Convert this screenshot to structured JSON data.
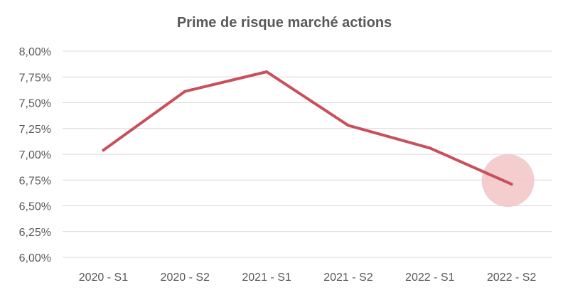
{
  "chart_data": {
    "type": "line",
    "title": "Prime de risque marché actions",
    "xlabel": "",
    "ylabel": "",
    "categories": [
      "2020 - S1",
      "2020 - S2",
      "2021 - S1",
      "2021 - S2",
      "2022 - S1",
      "2022 - S2"
    ],
    "series": [
      {
        "name": "Prime de risque marché actions",
        "values": [
          7.04,
          7.61,
          7.8,
          7.28,
          7.06,
          6.71
        ]
      }
    ],
    "ylim": [
      6.0,
      8.0
    ],
    "yticks": [
      6.0,
      6.25,
      6.5,
      6.75,
      7.0,
      7.25,
      7.5,
      7.75,
      8.0
    ],
    "ytick_labels": [
      "6,00%",
      "6,25%",
      "6,50%",
      "6,75%",
      "7,00%",
      "7,25%",
      "7,50%",
      "7,75%",
      "8,00%"
    ],
    "grid": true,
    "legend": "none",
    "highlight_index": 5,
    "colors": {
      "line": "#c9505b",
      "highlight": "#f2c4c7",
      "grid": "#d9d9d9",
      "text": "#595959"
    }
  }
}
